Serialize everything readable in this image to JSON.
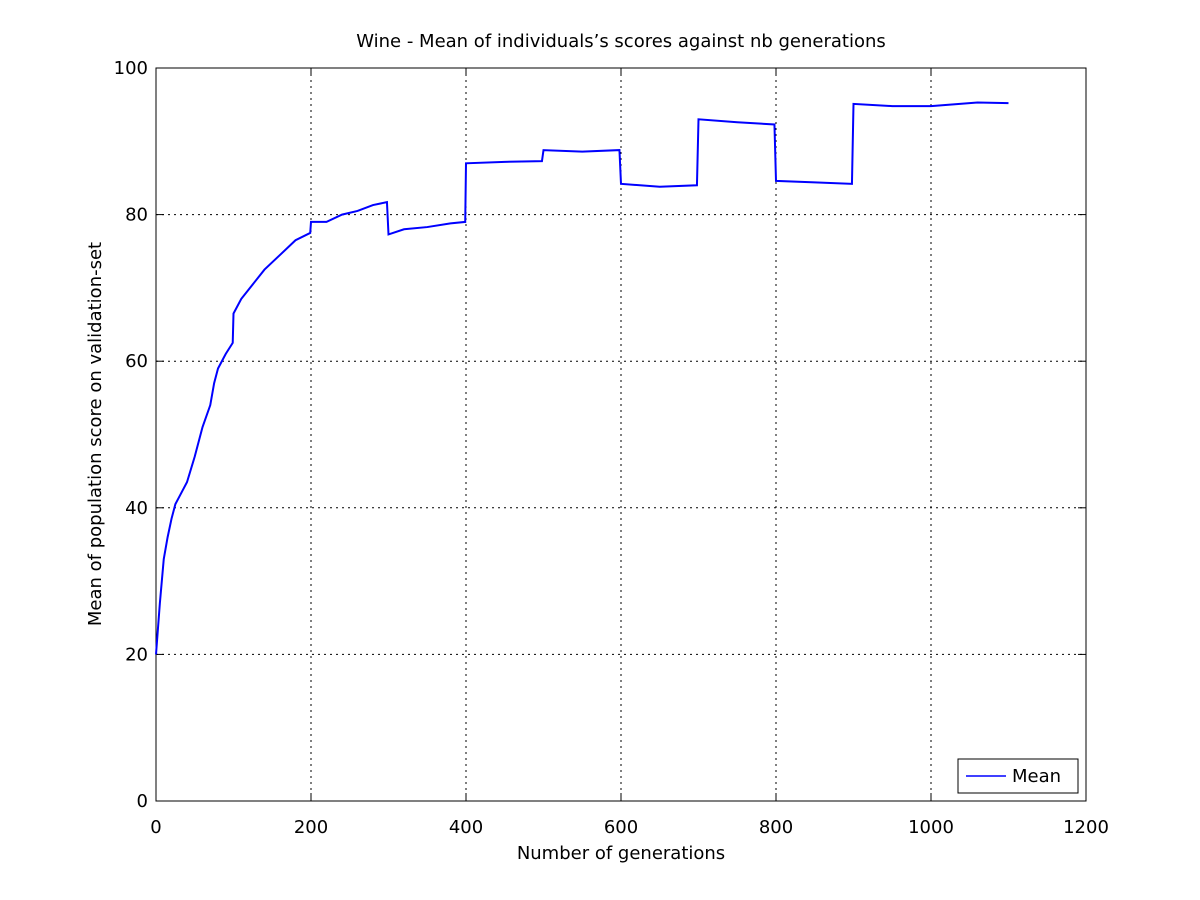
{
  "chart_data": {
    "type": "line",
    "title": "Wine - Mean of individuals’s scores against nb generations",
    "xlabel": "Number of generations",
    "ylabel": "Mean of population score on validation-set",
    "xlim": [
      0,
      1200
    ],
    "xticks": [
      0,
      200,
      400,
      600,
      800,
      1000,
      1200
    ],
    "ylim": [
      0,
      100
    ],
    "yticks": [
      0,
      20,
      40,
      60,
      80,
      100
    ],
    "grid": true,
    "legend": "lower right",
    "x": [
      0,
      5,
      10,
      15,
      20,
      25,
      30,
      40,
      50,
      60,
      70,
      75,
      80,
      90,
      99,
      100,
      110,
      125,
      140,
      160,
      180,
      199,
      200,
      220,
      240,
      260,
      280,
      298,
      300,
      320,
      350,
      380,
      399,
      400,
      450,
      498,
      500,
      550,
      598,
      600,
      650,
      698,
      700,
      750,
      798,
      800,
      850,
      898,
      900,
      950,
      1000,
      1060,
      1100
    ],
    "series": [
      {
        "name": "Mean",
        "color": "#0000ff",
        "values": [
          20,
          27,
          33,
          36,
          38.5,
          40.5,
          41.5,
          43.5,
          47,
          51,
          54,
          57,
          59,
          61,
          62.5,
          66.5,
          68.5,
          70.5,
          72.5,
          74.5,
          76.5,
          77.5,
          79,
          79,
          80,
          80.5,
          81.3,
          81.7,
          77.3,
          78,
          78.3,
          78.8,
          79,
          87,
          87.2,
          87.3,
          88.8,
          88.6,
          88.8,
          84.2,
          83.8,
          84,
          93,
          92.6,
          92.3,
          84.6,
          84.4,
          84.2,
          95.1,
          94.8,
          94.8,
          95.3,
          95.2
        ]
      }
    ]
  }
}
